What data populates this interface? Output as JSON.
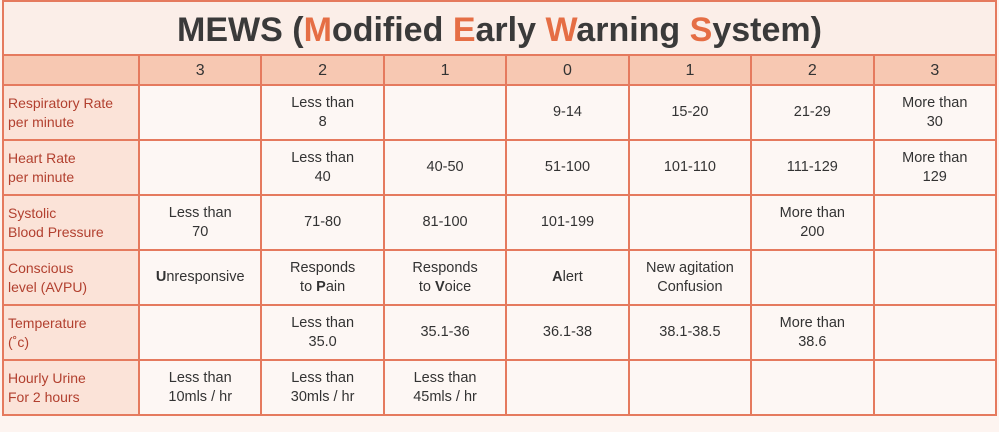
{
  "header": {
    "title": [
      "MEWS (",
      {
        "accent": "M"
      },
      "odified ",
      {
        "accent": "E"
      },
      "arly ",
      {
        "accent": "W"
      },
      "arning ",
      {
        "accent": "S"
      },
      "ystem)"
    ]
  },
  "table": {
    "columns": [
      "3",
      "2",
      "1",
      "0",
      "1",
      "2",
      "3"
    ],
    "rows": [
      {
        "label": "Respiratory Rate\nper minute",
        "cells": [
          null,
          "Less than\n8",
          null,
          "9-14",
          "15-20",
          "21-29",
          "More than\n30"
        ]
      },
      {
        "label": "Heart Rate\nper minute",
        "cells": [
          null,
          "Less than\n40",
          "40-50",
          "51-100",
          "101-110",
          "111-129",
          "More than\n129"
        ]
      },
      {
        "label": "Systolic\nBlood Pressure",
        "cells": [
          "Less than\n70",
          "71-80",
          "81-100",
          "101-199",
          null,
          "More than\n200",
          null
        ]
      },
      {
        "label": "Conscious\nlevel (AVPU)",
        "cells": [
          [
            {
              "b": "U"
            },
            "nresponsive"
          ],
          [
            "Responds\nto ",
            {
              "b": "P"
            },
            "ain"
          ],
          [
            "Responds\nto ",
            {
              "b": "V"
            },
            "oice"
          ],
          [
            {
              "b": "A"
            },
            "lert"
          ],
          "New agitation\nConfusion",
          null,
          null
        ]
      },
      {
        "label": "Temperature\n(˚c)",
        "cells": [
          null,
          "Less than\n35.0",
          "35.1-36",
          "36.1-38",
          "38.1-38.5",
          "More than\n38.6",
          null
        ]
      },
      {
        "label": "Hourly Urine\nFor 2 hours",
        "cells": [
          "Less than\n10mls / hr",
          "Less than\n30mls / hr",
          "Less than\n45mls / hr",
          null,
          null,
          null,
          null
        ]
      }
    ]
  }
}
